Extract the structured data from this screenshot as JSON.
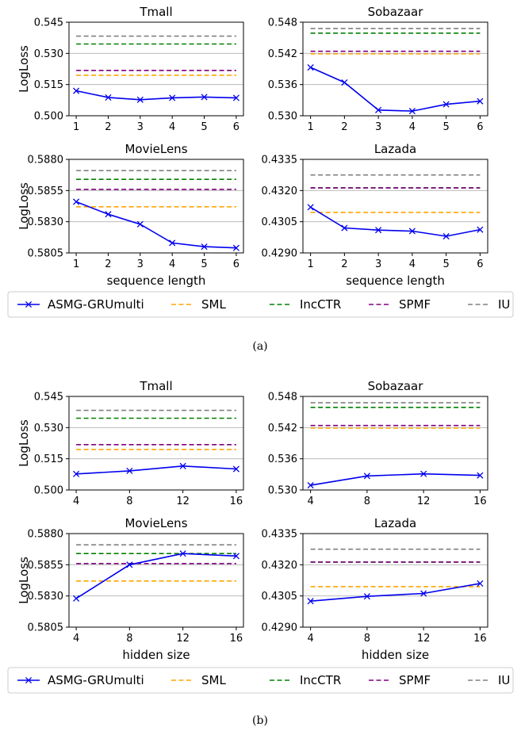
{
  "legend": {
    "entries": [
      {
        "label": "ASMG-GRUmulti",
        "color": "#0000ee",
        "style": "solid-x"
      },
      {
        "label": "SML",
        "color": "#ffa500",
        "style": "dashed"
      },
      {
        "label": "IncCTR",
        "color": "#008000",
        "style": "dashed"
      },
      {
        "label": "SPMF",
        "color": "#800080",
        "style": "dashed"
      },
      {
        "label": "IU",
        "color": "#808080",
        "style": "dashed"
      }
    ]
  },
  "captions": {
    "a": "(a)",
    "b": "(b)"
  },
  "chart_data": [
    {
      "type": "line",
      "panel": "a",
      "title": "Tmall",
      "xlabel": "",
      "ylabel": "LogLoss",
      "x": [
        1,
        2,
        3,
        4,
        5,
        6
      ],
      "ylim": [
        0.5,
        0.545
      ],
      "yticks": [
        "0.500",
        "0.515",
        "0.530",
        "0.545"
      ],
      "grid_y": [
        0.515,
        0.53
      ],
      "series": [
        {
          "name": "ASMG-GRUmulti",
          "values": [
            0.512,
            0.5088,
            0.5077,
            0.5086,
            0.509,
            0.5086
          ]
        },
        {
          "name": "SML",
          "values": [
            0.5195,
            0.5195,
            0.5195,
            0.5195,
            0.5195,
            0.5195
          ]
        },
        {
          "name": "IncCTR",
          "values": [
            0.5345,
            0.5345,
            0.5345,
            0.5345,
            0.5345,
            0.5345
          ]
        },
        {
          "name": "SPMF",
          "values": [
            0.5218,
            0.5218,
            0.5218,
            0.5218,
            0.5218,
            0.5218
          ]
        },
        {
          "name": "IU",
          "values": [
            0.5383,
            0.5383,
            0.5383,
            0.5383,
            0.5383,
            0.5383
          ]
        }
      ]
    },
    {
      "type": "line",
      "panel": "a",
      "title": "Sobazaar",
      "xlabel": "",
      "ylabel": "",
      "x": [
        1,
        2,
        3,
        4,
        5,
        6
      ],
      "ylim": [
        0.53,
        0.548
      ],
      "yticks": [
        "0.530",
        "0.536",
        "0.542",
        "0.548"
      ],
      "grid_y": [
        0.536,
        0.542
      ],
      "series": [
        {
          "name": "ASMG-GRUmulti",
          "values": [
            0.5393,
            0.5364,
            0.5311,
            0.5309,
            0.5322,
            0.5328
          ]
        },
        {
          "name": "SML",
          "values": [
            0.5419,
            0.5419,
            0.5419,
            0.5419,
            0.5419,
            0.5419
          ]
        },
        {
          "name": "IncCTR",
          "values": [
            0.5459,
            0.5459,
            0.5459,
            0.5459,
            0.5459,
            0.5459
          ]
        },
        {
          "name": "SPMF",
          "values": [
            0.5424,
            0.5424,
            0.5424,
            0.5424,
            0.5424,
            0.5424
          ]
        },
        {
          "name": "IU",
          "values": [
            0.5468,
            0.5468,
            0.5468,
            0.5468,
            0.5468,
            0.5468
          ]
        }
      ]
    },
    {
      "type": "line",
      "panel": "a",
      "title": "MovieLens",
      "xlabel": "sequence length",
      "ylabel": "LogLoss",
      "x": [
        1,
        2,
        3,
        4,
        5,
        6
      ],
      "ylim": [
        0.5805,
        0.588
      ],
      "yticks": [
        "0.5805",
        "0.5830",
        "0.5855",
        "0.5880"
      ],
      "grid_y": [
        0.583,
        0.5855
      ],
      "series": [
        {
          "name": "ASMG-GRUmulti",
          "values": [
            0.5846,
            0.5836,
            0.5828,
            0.5813,
            0.581,
            0.5809
          ]
        },
        {
          "name": "SML",
          "values": [
            0.5842,
            0.5842,
            0.5842,
            0.5842,
            0.5842,
            0.5842
          ]
        },
        {
          "name": "IncCTR",
          "values": [
            0.5864,
            0.5864,
            0.5864,
            0.5864,
            0.5864,
            0.5864
          ]
        },
        {
          "name": "SPMF",
          "values": [
            0.5856,
            0.5856,
            0.5856,
            0.5856,
            0.5856,
            0.5856
          ]
        },
        {
          "name": "IU",
          "values": [
            0.5871,
            0.5871,
            0.5871,
            0.5871,
            0.5871,
            0.5871
          ]
        }
      ]
    },
    {
      "type": "line",
      "panel": "a",
      "title": "Lazada",
      "xlabel": "sequence length",
      "ylabel": "",
      "x": [
        1,
        2,
        3,
        4,
        5,
        6
      ],
      "ylim": [
        0.429,
        0.4335
      ],
      "yticks": [
        "0.4290",
        "0.4305",
        "0.4320",
        "0.4335"
      ],
      "grid_y": [
        0.4305,
        0.432
      ],
      "series": [
        {
          "name": "ASMG-GRUmulti",
          "values": [
            0.4312,
            0.4302,
            0.4301,
            0.43005,
            0.4298,
            0.43012
          ]
        },
        {
          "name": "SML",
          "values": [
            0.43095,
            0.43095,
            0.43095,
            0.43095,
            0.43095,
            0.43095
          ]
        },
        {
          "name": "IncCTR",
          "values": [
            0.43213,
            0.43213,
            0.43213,
            0.43213,
            0.43213,
            0.43213
          ]
        },
        {
          "name": "SPMF",
          "values": [
            0.43213,
            0.43213,
            0.43213,
            0.43213,
            0.43213,
            0.43213
          ]
        },
        {
          "name": "IU",
          "values": [
            0.43275,
            0.43275,
            0.43275,
            0.43275,
            0.43275,
            0.43275
          ]
        }
      ]
    },
    {
      "type": "line",
      "panel": "b",
      "title": "Tmall",
      "xlabel": "",
      "ylabel": "LogLoss",
      "x": [
        4,
        8,
        12,
        16
      ],
      "ylim": [
        0.5,
        0.545
      ],
      "yticks": [
        "0.500",
        "0.515",
        "0.530",
        "0.545"
      ],
      "grid_y": [
        0.515,
        0.53
      ],
      "series": [
        {
          "name": "ASMG-GRUmulti",
          "values": [
            0.5077,
            0.5092,
            0.5115,
            0.5101
          ]
        },
        {
          "name": "SML",
          "values": [
            0.5195,
            0.5195,
            0.5195,
            0.5195
          ]
        },
        {
          "name": "IncCTR",
          "values": [
            0.5345,
            0.5345,
            0.5345,
            0.5345
          ]
        },
        {
          "name": "SPMF",
          "values": [
            0.5218,
            0.5218,
            0.5218,
            0.5218
          ]
        },
        {
          "name": "IU",
          "values": [
            0.5383,
            0.5383,
            0.5383,
            0.5383
          ]
        }
      ]
    },
    {
      "type": "line",
      "panel": "b",
      "title": "Sobazaar",
      "xlabel": "",
      "ylabel": "",
      "x": [
        4,
        8,
        12,
        16
      ],
      "ylim": [
        0.53,
        0.548
      ],
      "yticks": [
        "0.530",
        "0.536",
        "0.542",
        "0.548"
      ],
      "grid_y": [
        0.536,
        0.542
      ],
      "series": [
        {
          "name": "ASMG-GRUmulti",
          "values": [
            0.5309,
            0.5327,
            0.5331,
            0.5328
          ]
        },
        {
          "name": "SML",
          "values": [
            0.5419,
            0.5419,
            0.5419,
            0.5419
          ]
        },
        {
          "name": "IncCTR",
          "values": [
            0.5459,
            0.5459,
            0.5459,
            0.5459
          ]
        },
        {
          "name": "SPMF",
          "values": [
            0.5424,
            0.5424,
            0.5424,
            0.5424
          ]
        },
        {
          "name": "IU",
          "values": [
            0.5468,
            0.5468,
            0.5468,
            0.5468
          ]
        }
      ]
    },
    {
      "type": "line",
      "panel": "b",
      "title": "MovieLens",
      "xlabel": "hidden size",
      "ylabel": "LogLoss",
      "x": [
        4,
        8,
        12,
        16
      ],
      "ylim": [
        0.5805,
        0.588
      ],
      "yticks": [
        "0.5805",
        "0.5830",
        "0.5855",
        "0.5880"
      ],
      "grid_y": [
        0.583,
        0.5855
      ],
      "series": [
        {
          "name": "ASMG-GRUmulti",
          "values": [
            0.5828,
            0.5855,
            0.5864,
            0.5862
          ]
        },
        {
          "name": "SML",
          "values": [
            0.5842,
            0.5842,
            0.5842,
            0.5842
          ]
        },
        {
          "name": "IncCTR",
          "values": [
            0.5864,
            0.5864,
            0.5864,
            0.5864
          ]
        },
        {
          "name": "SPMF",
          "values": [
            0.5856,
            0.5856,
            0.5856,
            0.5856
          ]
        },
        {
          "name": "IU",
          "values": [
            0.5871,
            0.5871,
            0.5871,
            0.5871
          ]
        }
      ]
    },
    {
      "type": "line",
      "panel": "b",
      "title": "Lazada",
      "xlabel": "hidden size",
      "ylabel": "",
      "x": [
        4,
        8,
        12,
        16
      ],
      "ylim": [
        0.429,
        0.4335
      ],
      "yticks": [
        "0.4290",
        "0.4305",
        "0.4320",
        "0.4335"
      ],
      "grid_y": [
        0.4305,
        0.432
      ],
      "series": [
        {
          "name": "ASMG-GRUmulti",
          "values": [
            0.43025,
            0.43048,
            0.43062,
            0.4311
          ]
        },
        {
          "name": "SML",
          "values": [
            0.43095,
            0.43095,
            0.43095,
            0.43095
          ]
        },
        {
          "name": "IncCTR",
          "values": [
            0.43213,
            0.43213,
            0.43213,
            0.43213
          ]
        },
        {
          "name": "SPMF",
          "values": [
            0.43213,
            0.43213,
            0.43213,
            0.43213
          ]
        },
        {
          "name": "IU",
          "values": [
            0.43275,
            0.43275,
            0.43275,
            0.43275
          ]
        }
      ]
    }
  ]
}
